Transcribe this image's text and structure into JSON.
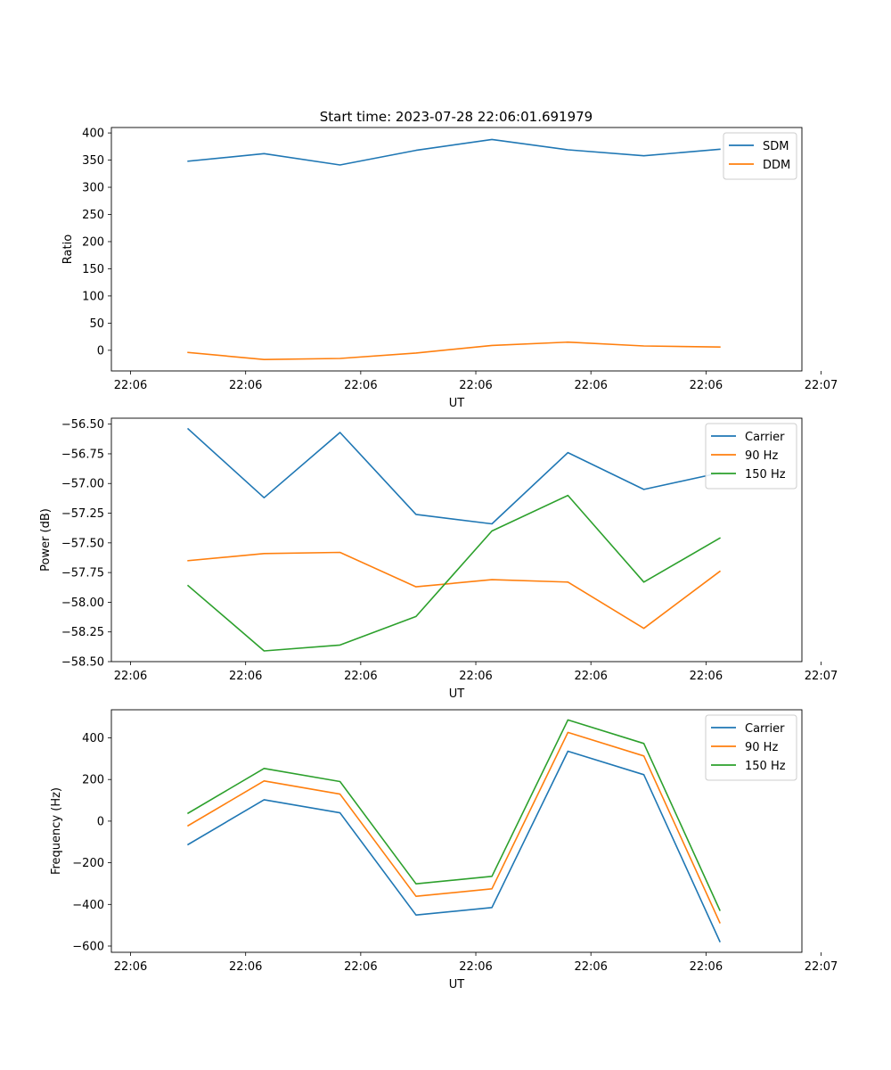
{
  "figure": {
    "title": "Start time: 2023-07-28 22:06:01.691979"
  },
  "chart_data": [
    {
      "type": "line",
      "id": "ratio",
      "title": "Start time: 2023-07-28 22:06:01.691979",
      "xlabel": "UT",
      "ylabel": "Ratio",
      "xlim": [
        -0.25,
        8.75
      ],
      "ylim": [
        -38,
        410
      ],
      "x_ticks": [
        0,
        1.5,
        3,
        4.5,
        6,
        7.5,
        9
      ],
      "x_tick_labels": [
        "22:06",
        "22:06",
        "22:06",
        "22:06",
        "22:06",
        "22:06",
        "22:07"
      ],
      "y_ticks": [
        0,
        50,
        100,
        150,
        200,
        250,
        300,
        350,
        400
      ],
      "y_tick_labels": [
        "0",
        "50",
        "100",
        "150",
        "200",
        "250",
        "300",
        "350",
        "400"
      ],
      "legend_position": "top-right",
      "x": [
        0.75,
        1.74,
        2.73,
        3.72,
        4.71,
        5.7,
        6.69,
        7.68
      ],
      "series": [
        {
          "name": "SDM",
          "color": "#1f77b4",
          "values": [
            348,
            362,
            341,
            368,
            388,
            369,
            358,
            370
          ]
        },
        {
          "name": "DDM",
          "color": "#ff7f0e",
          "values": [
            -4,
            -17,
            -15,
            -5,
            9,
            15,
            8,
            6
          ]
        }
      ]
    },
    {
      "type": "line",
      "id": "power",
      "title": "",
      "xlabel": "UT",
      "ylabel": "Power (dB)",
      "xlim": [
        -0.25,
        8.75
      ],
      "ylim": [
        -58.5,
        -56.45
      ],
      "x_ticks": [
        0,
        1.5,
        3,
        4.5,
        6,
        7.5,
        9
      ],
      "x_tick_labels": [
        "22:06",
        "22:06",
        "22:06",
        "22:06",
        "22:06",
        "22:06",
        "22:07"
      ],
      "y_ticks": [
        -58.5,
        -58.25,
        -58.0,
        -57.75,
        -57.5,
        -57.25,
        -57.0,
        -56.75,
        -56.5
      ],
      "y_tick_labels": [
        "−58.50",
        "−58.25",
        "−58.00",
        "−57.75",
        "−57.50",
        "−57.25",
        "−57.00",
        "−56.75",
        "−56.50"
      ],
      "legend_position": "top-right",
      "x": [
        0.75,
        1.74,
        2.73,
        3.72,
        4.71,
        5.7,
        6.69,
        7.68
      ],
      "series": [
        {
          "name": "Carrier",
          "color": "#1f77b4",
          "values": [
            -56.54,
            -57.12,
            -56.57,
            -57.26,
            -57.34,
            -56.74,
            -57.05,
            -56.91
          ]
        },
        {
          "name": "90 Hz",
          "color": "#ff7f0e",
          "values": [
            -57.65,
            -57.59,
            -57.58,
            -57.87,
            -57.81,
            -57.83,
            -58.22,
            -57.74
          ]
        },
        {
          "name": "150 Hz",
          "color": "#2ca02c",
          "values": [
            -57.86,
            -58.41,
            -58.36,
            -58.12,
            -57.4,
            -57.1,
            -57.83,
            -57.46
          ]
        }
      ]
    },
    {
      "type": "line",
      "id": "frequency",
      "title": "",
      "xlabel": "UT",
      "ylabel": "Frequency (Hz)",
      "xlim": [
        -0.25,
        8.75
      ],
      "ylim": [
        -630,
        535
      ],
      "x_ticks": [
        0,
        1.5,
        3,
        4.5,
        6,
        7.5,
        9
      ],
      "x_tick_labels": [
        "22:06",
        "22:06",
        "22:06",
        "22:06",
        "22:06",
        "22:06",
        "22:07"
      ],
      "y_ticks": [
        -600,
        -400,
        -200,
        0,
        200,
        400
      ],
      "y_tick_labels": [
        "−600",
        "−400",
        "−200",
        "0",
        "200",
        "400"
      ],
      "legend_position": "top-right",
      "x": [
        0.75,
        1.74,
        2.73,
        3.72,
        4.71,
        5.7,
        6.69,
        7.68
      ],
      "series": [
        {
          "name": "Carrier",
          "color": "#1f77b4",
          "values": [
            -112,
            103,
            40,
            -451,
            -415,
            336,
            223,
            -578
          ]
        },
        {
          "name": "90 Hz",
          "color": "#ff7f0e",
          "values": [
            -22,
            193,
            130,
            -361,
            -325,
            426,
            313,
            -488
          ]
        },
        {
          "name": "150 Hz",
          "color": "#2ca02c",
          "values": [
            38,
            253,
            190,
            -301,
            -265,
            486,
            373,
            -428
          ]
        }
      ]
    }
  ]
}
